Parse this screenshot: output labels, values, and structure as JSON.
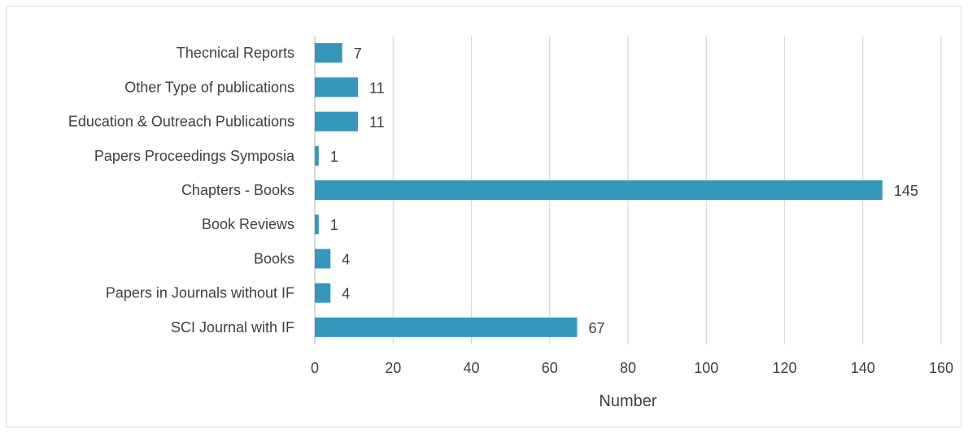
{
  "chart_data": {
    "type": "bar",
    "orientation": "horizontal",
    "categories": [
      "Thecnical Reports",
      "Other Type of publications",
      "Education & Outreach Publications",
      "Papers Proceedings Symposia",
      "Chapters - Books",
      "Book Reviews",
      "Books",
      "Papers in Journals without IF",
      "SCI Journal with IF"
    ],
    "values": [
      7,
      11,
      11,
      1,
      145,
      1,
      4,
      4,
      67
    ],
    "data_labels": [
      "7",
      "11",
      "11",
      "1",
      "145",
      "1",
      "4",
      "4",
      "67"
    ],
    "title": "",
    "xlabel": "Number",
    "ylabel": "",
    "xlim": [
      0,
      160
    ],
    "x_ticks": [
      0,
      20,
      40,
      60,
      80,
      100,
      120,
      140,
      160
    ],
    "x_tick_labels": [
      "0",
      "20",
      "40",
      "60",
      "80",
      "100",
      "120",
      "140",
      "160"
    ],
    "grid": "vertical",
    "legend": "none",
    "bar_color": "#3497bb",
    "grid_color": "#d9d9d9"
  }
}
